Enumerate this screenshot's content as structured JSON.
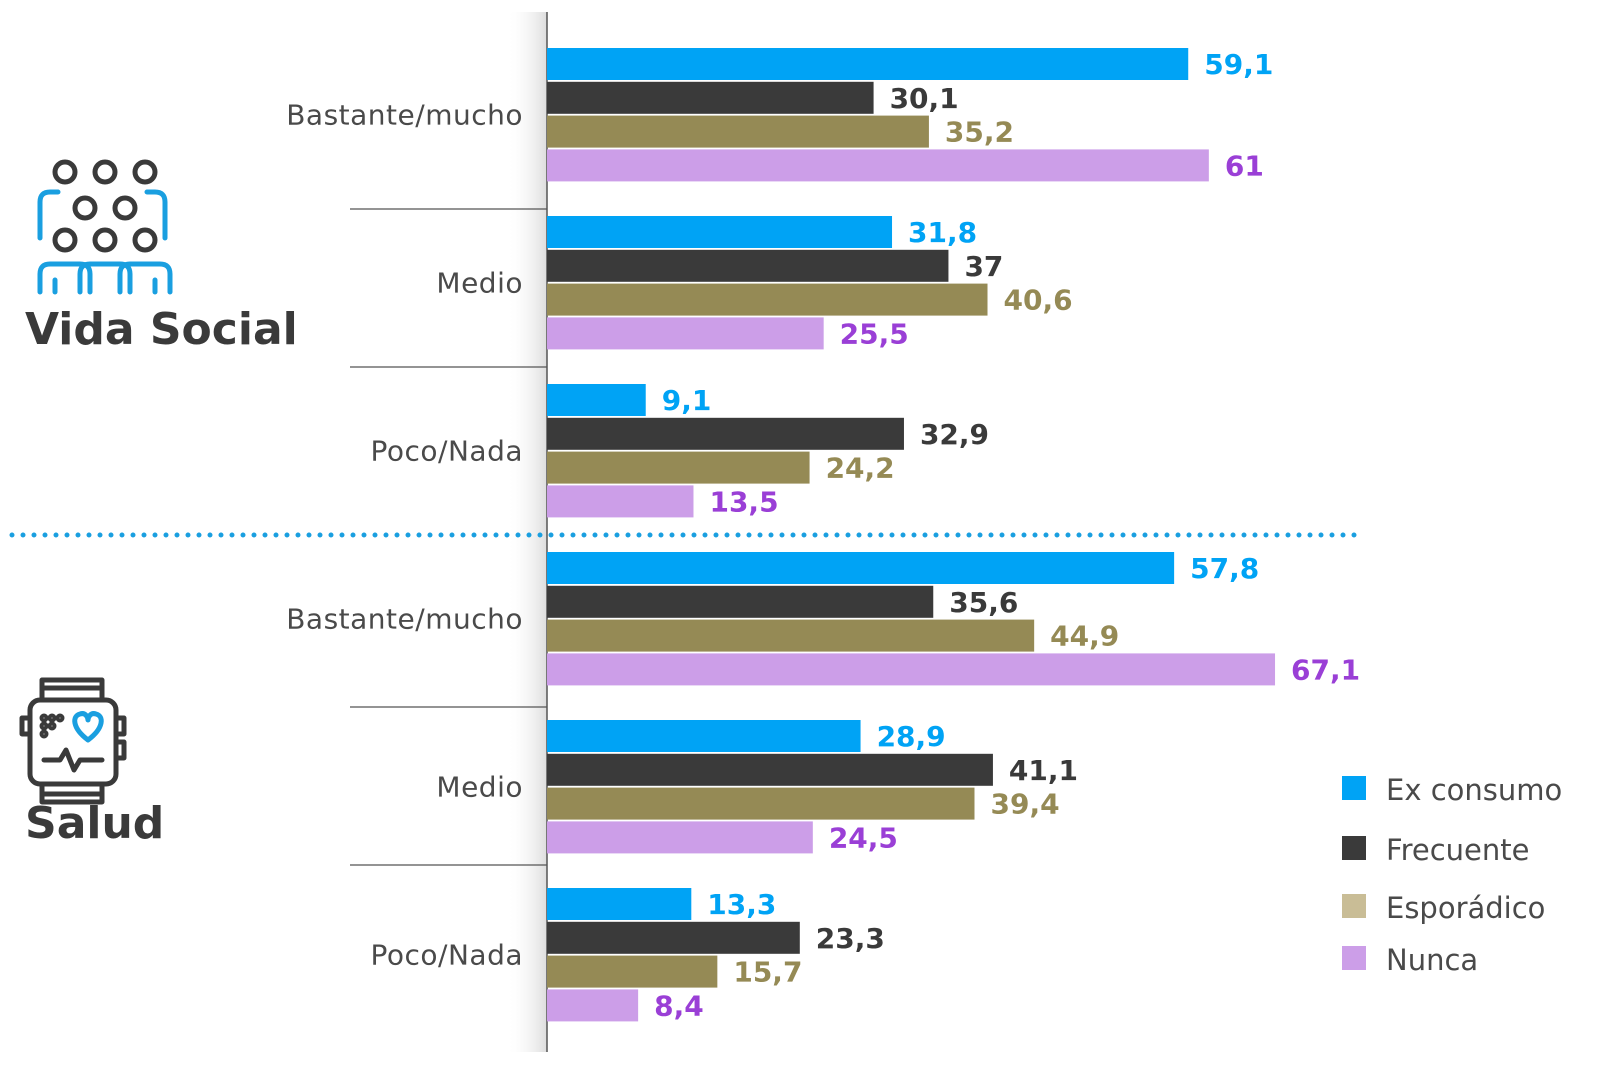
{
  "chart_data": {
    "type": "bar",
    "orientation": "horizontal",
    "groups": [
      {
        "title": "Vida Social",
        "icon": "people-group-icon",
        "categories": [
          "Bastante/mucho",
          "Medio",
          "Poco/Nada"
        ],
        "series": [
          {
            "name": "Ex consumo",
            "values": [
              59.1,
              31.8,
              9.1
            ]
          },
          {
            "name": "Frecuente",
            "values": [
              30.1,
              37,
              32.9
            ]
          },
          {
            "name": "Esporádico",
            "values": [
              35.2,
              40.6,
              24.2
            ]
          },
          {
            "name": "Nunca",
            "values": [
              61,
              25.5,
              13.5
            ]
          }
        ],
        "value_labels": [
          [
            "59,1",
            "31,8",
            "9,1"
          ],
          [
            "30,1",
            "37",
            "32,9"
          ],
          [
            "35,2",
            "40,6",
            "24,2"
          ],
          [
            "61",
            "25,5",
            "13,5"
          ]
        ]
      },
      {
        "title": "Salud",
        "icon": "smartwatch-heart-icon",
        "categories": [
          "Bastante/mucho",
          "Medio",
          "Poco/Nada"
        ],
        "series": [
          {
            "name": "Ex consumo",
            "values": [
              57.8,
              28.9,
              13.3
            ]
          },
          {
            "name": "Frecuente",
            "values": [
              35.6,
              41.1,
              23.3
            ]
          },
          {
            "name": "Esporádico",
            "values": [
              44.9,
              39.4,
              15.7
            ]
          },
          {
            "name": "Nunca",
            "values": [
              67.1,
              24.5,
              8.4
            ]
          }
        ],
        "value_labels": [
          [
            "57,8",
            "28,9",
            "13,3"
          ],
          [
            "35,6",
            "41,1",
            "23,3"
          ],
          [
            "44,9",
            "39,4",
            "15,7"
          ],
          [
            "67,1",
            "24,5",
            "8,4"
          ]
        ]
      }
    ],
    "legend": {
      "position": "bottom-right",
      "items": [
        "Ex consumo",
        "Frecuente",
        "Esporádico",
        "Nunca"
      ]
    },
    "colors": {
      "bars": [
        "#00a3f5",
        "#3a3a3a",
        "#958a55",
        "#cc9ee8"
      ],
      "labels": [
        "#00a3f5",
        "#3a3a3a",
        "#958a55",
        "#9a3fd6"
      ],
      "legend": [
        "#00a3f5",
        "#3a3a3a",
        "#c9bd96",
        "#cc9ee8"
      ],
      "separator": "#1a9fe0",
      "icon": "#1a9fe0",
      "icon_dark": "#3a3a3a"
    },
    "xlim": [
      0,
      70
    ],
    "grid": false
  }
}
